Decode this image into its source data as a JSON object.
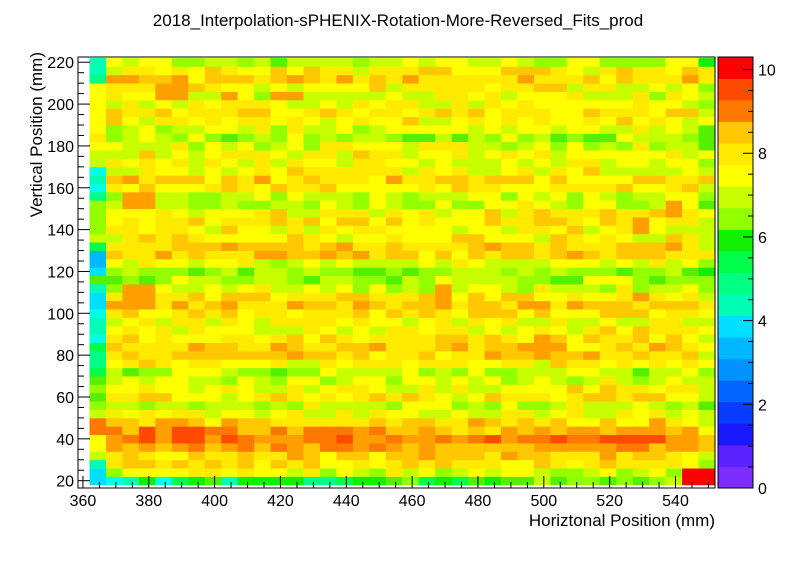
{
  "chart_data": {
    "type": "heatmap",
    "title": "2018_Interpolation-sPHENIX-Rotation-More-Reversed_Fits_prod",
    "xlabel": "Horiztonal Position (mm)",
    "ylabel": "Vertical Position (mm)",
    "xlim": [
      358.5,
      552
    ],
    "ylim": [
      16.5,
      222.5
    ],
    "zlim": [
      0,
      10.3
    ],
    "grid": false,
    "x_ticks": [
      360,
      380,
      400,
      420,
      440,
      460,
      480,
      500,
      520,
      540
    ],
    "y_ticks": [
      20,
      40,
      60,
      80,
      100,
      120,
      140,
      160,
      180,
      200,
      220
    ],
    "z_ticks": [
      0,
      2,
      4,
      6,
      8,
      10
    ],
    "x_bin_edges": [
      362,
      552
    ],
    "x_bin_count": 38,
    "y_bin_edges": [
      18,
      222
    ],
    "y_bin_count": 51,
    "palette_levels": 20,
    "palette_colors": [
      "#7b2cff",
      "#5a22ff",
      "#3b1cff",
      "#1a1aff",
      "#0a3cff",
      "#0066ff",
      "#0093ff",
      "#00b8ff",
      "#00dfff",
      "#00ffe8",
      "#00ffb4",
      "#00ff82",
      "#00ff4a",
      "#10f000",
      "#55f000",
      "#93ff00",
      "#c8ff00",
      "#ffff00",
      "#ffea00",
      "#ffc800",
      "#ffa000",
      "#ff7800",
      "#ff4a00",
      "#ff0000"
    ],
    "row_base_values": [
      7.0,
      7.3,
      7.9,
      8.1,
      8.7,
      9.2,
      8.6,
      8.1,
      7.5,
      7.2,
      7.8,
      7.6,
      7.2,
      7.0,
      7.7,
      8.1,
      8.3,
      8.0,
      7.6,
      7.5,
      7.9,
      8.3,
      8.0,
      7.3,
      6.8,
      6.7,
      7.4,
      8.1,
      8.3,
      7.8,
      7.7,
      7.9,
      7.7,
      7.2,
      7.1,
      8.0,
      8.2,
      7.6,
      7.4,
      7.6,
      7.3,
      6.9,
      7.3,
      7.7,
      7.9,
      7.6,
      7.4,
      7.7,
      8.2,
      7.8,
      7.0
    ],
    "left_column_values": [
      3.5,
      3.8,
      4.4,
      7.2,
      7.6,
      7.3,
      6.8,
      6.5,
      7.0,
      6.6,
      6.2,
      6.5,
      6.1,
      5.3,
      4.8,
      5.0,
      5.3,
      4.2,
      4.6,
      4.6,
      3.9,
      3.6,
      3.8,
      4.6,
      6.3,
      3.5,
      3.4,
      3.4,
      5.2,
      7.0,
      6.8,
      6.6,
      6.5,
      6.6,
      4.8,
      3.9,
      4.3,
      4.2,
      7.0,
      7.2,
      7.6,
      7.9,
      7.7,
      7.4,
      7.5,
      7.3,
      7.6,
      7.7,
      5.1,
      4.5,
      4.3
    ],
    "hot_spots": [
      {
        "x": 380,
        "y": 42,
        "value": 9.8
      },
      {
        "x": 365,
        "y": 45,
        "value": 9.2
      },
      {
        "x": 392,
        "y": 42,
        "value": 9.5
      },
      {
        "x": 386,
        "y": 205,
        "value": 8.9
      },
      {
        "x": 378,
        "y": 155,
        "value": 8.9
      },
      {
        "x": 404,
        "y": 204,
        "value": 8.8
      },
      {
        "x": 422,
        "y": 204,
        "value": 8.8
      },
      {
        "x": 378,
        "y": 111,
        "value": 8.7
      },
      {
        "x": 470,
        "y": 109,
        "value": 9.0
      },
      {
        "x": 530,
        "y": 142,
        "value": 8.9
      },
      {
        "x": 540,
        "y": 150,
        "value": 8.8
      },
      {
        "x": 445,
        "y": 42,
        "value": 8.7
      },
      {
        "x": 525,
        "y": 42,
        "value": 8.8
      },
      {
        "x": 500,
        "y": 87,
        "value": 8.7
      },
      {
        "x": 546,
        "y": 21,
        "value": 10.2
      }
    ],
    "bottom_row_values": [
      2.4,
      4.1,
      4.4,
      5.6,
      4.2,
      5.4,
      5.7,
      6.2,
      4.3,
      5.7,
      5.8,
      6.0,
      5.7,
      4.8,
      5.0,
      5.2,
      5.6,
      5.7,
      6.4,
      6.6,
      5.2,
      5.9,
      5.4,
      6.3,
      5.6,
      6.1,
      6.3,
      6.9,
      6.2,
      6.6,
      6.8,
      6.2,
      6.8,
      6.3,
      6.6,
      7.0,
      6.9,
      10.2
    ]
  }
}
